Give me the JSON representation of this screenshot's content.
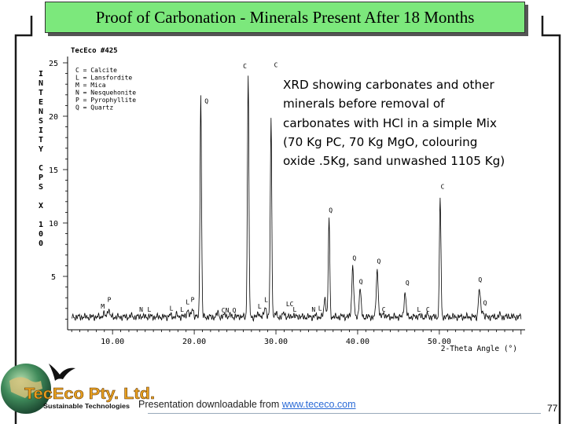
{
  "slide": {
    "title": "Proof of Carbonation - Minerals Present After 18 Months",
    "footer_text": "Presentation downloadable from ",
    "footer_link": "www.tececo.com",
    "page_number": "77",
    "logo": {
      "company": "TecEco Pty. Ltd.",
      "tagline": "Sustainable Technologies"
    }
  },
  "chart_data": {
    "type": "line",
    "title": "TecEco #425",
    "xlabel": "2-Theta Angle (°)",
    "ylabel": [
      "I",
      "N",
      "T",
      "E",
      "N",
      "S",
      "I",
      "T",
      "Y",
      "",
      "C",
      "P",
      "S",
      "",
      "X",
      "",
      "1",
      "0",
      "0"
    ],
    "xlim": [
      4.5,
      60.5
    ],
    "ylim": [
      0,
      25
    ],
    "x_ticks": [
      10,
      20,
      30,
      40,
      50
    ],
    "x_tick_labels": [
      "10.00",
      "20.00",
      "30.00",
      "40.00",
      "50.00"
    ],
    "y_ticks": [
      5,
      10,
      15,
      20,
      25
    ],
    "y_tick_labels": [
      "5",
      "10",
      "15",
      "20",
      "25"
    ],
    "legend": [
      "C = Calcite",
      "L = Lansfordite",
      "M = Mica",
      "N = Nesquehonite",
      "P = Pyrophyllite",
      "Q = Quartz"
    ],
    "note_lines": [
      "XRD showing carbonates and other",
      "minerals before removal of",
      "carbonates with HCl in a simple Mix",
      "(70 Kg PC, 70 Kg MgO, colouring",
      "oxide .5Kg, sand unwashed 1105 Kg)"
    ],
    "baseline": 1.2,
    "peaks": [
      {
        "x": 8.9,
        "y": 1.5
      },
      {
        "x": 9.5,
        "y": 2.0
      },
      {
        "x": 12.3,
        "y": 1.3
      },
      {
        "x": 13.5,
        "y": 1.3
      },
      {
        "x": 14.5,
        "y": 1.3
      },
      {
        "x": 17.0,
        "y": 1.4
      },
      {
        "x": 17.8,
        "y": 1.4
      },
      {
        "x": 18.5,
        "y": 1.3
      },
      {
        "x": 19.2,
        "y": 1.9
      },
      {
        "x": 19.8,
        "y": 2.0
      },
      {
        "x": 20.8,
        "y": 22.0
      },
      {
        "x": 22.9,
        "y": 1.6
      },
      {
        "x": 23.8,
        "y": 1.5
      },
      {
        "x": 24.5,
        "y": 1.4
      },
      {
        "x": 25.5,
        "y": 1.3
      },
      {
        "x": 26.6,
        "y": 24.0
      },
      {
        "x": 27.9,
        "y": 1.6
      },
      {
        "x": 28.7,
        "y": 2.2
      },
      {
        "x": 29.4,
        "y": 19.8
      },
      {
        "x": 30.0,
        "y": 1.5
      },
      {
        "x": 31.0,
        "y": 1.6
      },
      {
        "x": 32.1,
        "y": 1.4
      },
      {
        "x": 32.8,
        "y": 1.3
      },
      {
        "x": 34.0,
        "y": 1.2
      },
      {
        "x": 34.8,
        "y": 1.3
      },
      {
        "x": 36.0,
        "y": 3.0
      },
      {
        "x": 36.5,
        "y": 10.5
      },
      {
        "x": 38.2,
        "y": 1.3
      },
      {
        "x": 39.4,
        "y": 5.9
      },
      {
        "x": 40.3,
        "y": 3.8
      },
      {
        "x": 42.4,
        "y": 5.6
      },
      {
        "x": 43.2,
        "y": 1.6
      },
      {
        "x": 45.8,
        "y": 3.5
      },
      {
        "x": 47.5,
        "y": 1.4
      },
      {
        "x": 48.5,
        "y": 1.4
      },
      {
        "x": 50.1,
        "y": 12.5
      },
      {
        "x": 54.9,
        "y": 3.8
      },
      {
        "x": 55.3,
        "y": 1.8
      },
      {
        "x": 57.4,
        "y": 1.4
      },
      {
        "x": 58.5,
        "y": 1.3
      }
    ],
    "peak_labels": [
      {
        "label": "M",
        "x": 8.8,
        "y": 2.0
      },
      {
        "label": "P",
        "x": 9.6,
        "y": 2.6
      },
      {
        "label": "N",
        "x": 13.5,
        "y": 1.7
      },
      {
        "label": "L",
        "x": 14.5,
        "y": 1.7
      },
      {
        "label": "L",
        "x": 17.2,
        "y": 1.8
      },
      {
        "label": "L",
        "x": 18.5,
        "y": 1.7
      },
      {
        "label": "L",
        "x": 19.2,
        "y": 2.4
      },
      {
        "label": "P",
        "x": 19.8,
        "y": 2.6
      },
      {
        "label": "Q",
        "x": 21.5,
        "y": 21.2
      },
      {
        "label": "CN",
        "x": 23.8,
        "y": 1.6
      },
      {
        "label": "Q",
        "x": 24.9,
        "y": 1.6
      },
      {
        "label": "L",
        "x": 28.0,
        "y": 2.0
      },
      {
        "label": "L",
        "x": 28.8,
        "y": 2.6
      },
      {
        "label": "C",
        "x": 30.0,
        "y": 24.6
      },
      {
        "label": "C",
        "x": 26.2,
        "y": 24.5
      },
      {
        "label": "LC",
        "x": 31.7,
        "y": 2.2
      },
      {
        "label": "L",
        "x": 32.3,
        "y": 1.7
      },
      {
        "label": "N",
        "x": 34.6,
        "y": 1.7
      },
      {
        "label": "L",
        "x": 35.4,
        "y": 1.8
      },
      {
        "label": "Q",
        "x": 36.7,
        "y": 11.0
      },
      {
        "label": "Q",
        "x": 39.6,
        "y": 6.5
      },
      {
        "label": "Q",
        "x": 40.4,
        "y": 4.3
      },
      {
        "label": "Q",
        "x": 42.6,
        "y": 6.2
      },
      {
        "label": "C",
        "x": 43.2,
        "y": 1.7
      },
      {
        "label": "Q",
        "x": 46.1,
        "y": 4.2
      },
      {
        "label": "L",
        "x": 47.5,
        "y": 1.7
      },
      {
        "label": "C",
        "x": 48.6,
        "y": 1.7
      },
      {
        "label": "C",
        "x": 50.4,
        "y": 13.2
      },
      {
        "label": "Q",
        "x": 55.0,
        "y": 4.5
      },
      {
        "label": "Q",
        "x": 55.6,
        "y": 2.3
      }
    ]
  },
  "colors": {
    "title_bg": "#7ce87c",
    "trace": "#000000",
    "link": "#2a6ad6",
    "frame": "#1a1a1a"
  }
}
